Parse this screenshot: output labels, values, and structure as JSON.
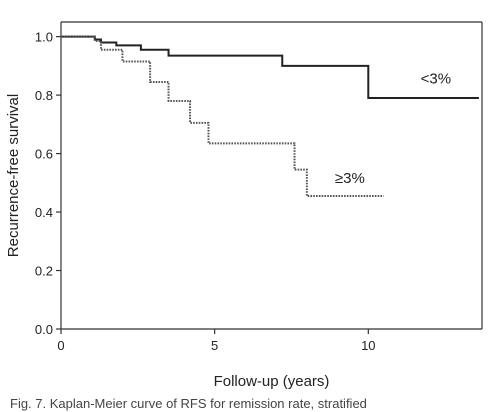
{
  "chart_data": {
    "type": "line",
    "title": "",
    "xlabel": "Follow-up (years)",
    "ylabel": "Recurrence-free survival",
    "xlim": [
      0,
      13.7
    ],
    "ylim": [
      0,
      1.05
    ],
    "xticks": [
      0,
      5,
      10
    ],
    "yticks": [
      0.0,
      0.2,
      0.4,
      0.6,
      0.8,
      1.0
    ],
    "ytick_labels": [
      "0.0",
      "0.2",
      "0.4",
      "0.6",
      "0.8",
      "1.0"
    ],
    "grid": false,
    "legend": "none",
    "series": [
      {
        "step": "post",
        "style": "solid",
        "x": [
          0,
          1.1,
          1.3,
          1.8,
          2.6,
          3.5,
          7.2,
          10.0,
          13.6
        ],
        "y": [
          1.0,
          0.99,
          0.98,
          0.97,
          0.955,
          0.935,
          0.9,
          0.79,
          0.79
        ]
      },
      {
        "step": "post",
        "style": "dotted",
        "x": [
          0,
          1.1,
          1.3,
          2.0,
          2.9,
          3.5,
          4.2,
          4.8,
          7.6,
          8.0,
          10.5
        ],
        "y": [
          1.0,
          0.985,
          0.955,
          0.915,
          0.845,
          0.78,
          0.705,
          0.635,
          0.545,
          0.455,
          0.455
        ]
      }
    ],
    "annotations": [
      {
        "text": "<3%",
        "x": 12.2,
        "y": 0.84
      },
      {
        "text": "≥3%",
        "x": 9.4,
        "y": 0.5
      }
    ]
  },
  "caption": "Fig. 7. Kaplan-Meier curve of RFS for remission rate, stratified"
}
